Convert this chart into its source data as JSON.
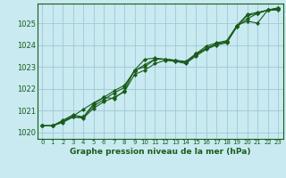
{
  "title": "Graphe pression niveau de la mer (hPa)",
  "bg_color": "#c8eaf0",
  "grid_color": "#a0c8d8",
  "line_color": "#1a5c1a",
  "marker_color": "#1a5c1a",
  "xlim": [
    -0.5,
    23.5
  ],
  "ylim": [
    1019.7,
    1025.9
  ],
  "yticks": [
    1020,
    1021,
    1022,
    1023,
    1024,
    1025
  ],
  "xticks": [
    0,
    1,
    2,
    3,
    4,
    5,
    6,
    7,
    8,
    9,
    10,
    11,
    12,
    13,
    14,
    15,
    16,
    17,
    18,
    19,
    20,
    21,
    22,
    23
  ],
  "series": [
    [
      1020.3,
      1020.3,
      1020.5,
      1020.7,
      1020.7,
      1021.2,
      1021.5,
      1021.8,
      1022.05,
      1022.85,
      1023.35,
      1023.4,
      1023.35,
      1023.3,
      1023.2,
      1023.6,
      1023.85,
      1024.05,
      1024.15,
      1024.9,
      1025.4,
      1025.5,
      1025.6,
      1025.7
    ],
    [
      1020.3,
      1020.3,
      1020.55,
      1020.8,
      1020.7,
      1021.3,
      1021.6,
      1021.55,
      1021.9,
      1022.85,
      1023.0,
      1023.35,
      1023.35,
      1023.3,
      1023.25,
      1023.6,
      1023.95,
      1024.1,
      1024.2,
      1024.9,
      1025.1,
      1025.0,
      1025.6,
      1025.65
    ],
    [
      1020.3,
      1020.3,
      1020.5,
      1020.75,
      1021.05,
      1021.35,
      1021.6,
      1021.9,
      1022.15,
      1022.8,
      1023.1,
      1023.35,
      1023.35,
      1023.28,
      1023.2,
      1023.55,
      1023.85,
      1024.05,
      1024.15,
      1024.85,
      1025.35,
      1025.45,
      1025.6,
      1025.7
    ],
    [
      1020.3,
      1020.3,
      1020.45,
      1020.7,
      1020.65,
      1021.1,
      1021.4,
      1021.6,
      1021.85,
      1022.65,
      1022.85,
      1023.15,
      1023.3,
      1023.25,
      1023.15,
      1023.5,
      1023.8,
      1024.0,
      1024.1,
      1024.85,
      1025.2,
      1025.45,
      1025.6,
      1025.6
    ]
  ]
}
